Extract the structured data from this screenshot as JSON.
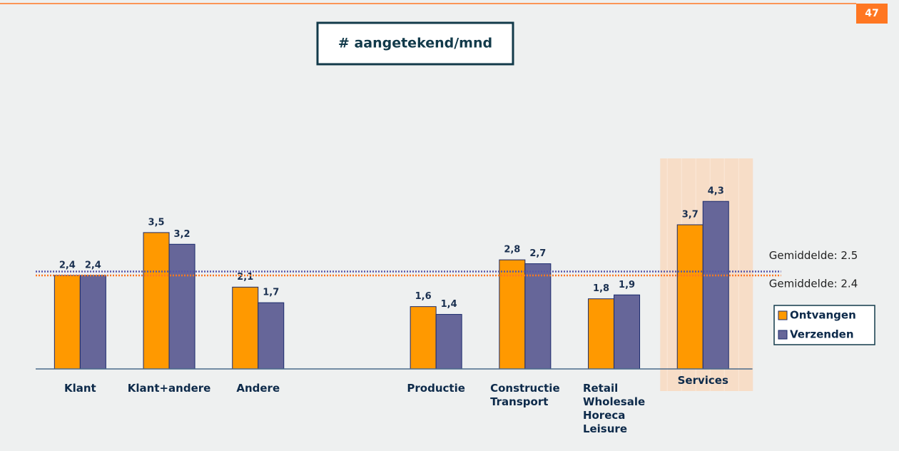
{
  "page_number": "47",
  "chart_data": {
    "type": "bar",
    "title": "# aangetekend/mnd",
    "categories": [
      "Klant",
      "Klant+andere",
      "Andere",
      null,
      "Productie",
      "Constructie\nTransport",
      "Retail\nWholesale\nHoreca\nLeisure",
      "Services"
    ],
    "series": [
      {
        "name": "Ontvangen",
        "color": "#ff9900",
        "values": [
          2.4,
          3.5,
          2.1,
          null,
          1.6,
          2.8,
          1.8,
          3.7
        ],
        "value_labels": [
          "2,4",
          "3,5",
          "2,1",
          null,
          "1,6",
          "2,8",
          "1,8",
          "3,7"
        ]
      },
      {
        "name": "Verzenden",
        "color": "#666699",
        "values": [
          2.4,
          3.2,
          1.7,
          null,
          1.4,
          2.7,
          1.9,
          4.3
        ],
        "value_labels": [
          "2,4",
          "3,2",
          "1,7",
          null,
          "1,4",
          "2,7",
          "1,9",
          "4,3"
        ]
      }
    ],
    "ylim": [
      0,
      5
    ],
    "reference_lines": [
      {
        "label": "Gemiddelde: 2.5",
        "value": 2.5,
        "color": "#5555aa"
      },
      {
        "label": "Gemiddelde: 2.4",
        "value": 2.4,
        "color": "#ff7722"
      }
    ],
    "highlight": "Services",
    "legend": "right"
  }
}
